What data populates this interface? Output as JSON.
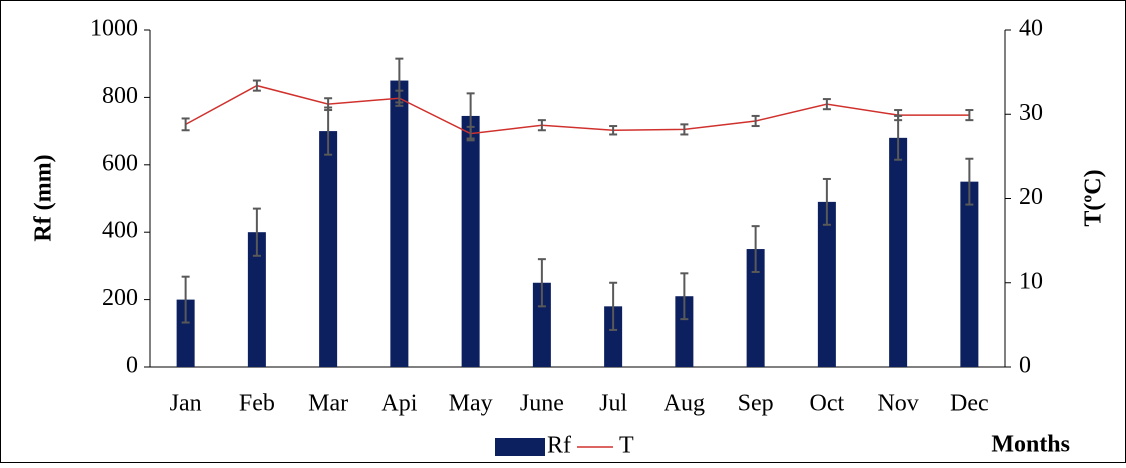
{
  "chart_data": {
    "type": "bar-line",
    "categories": [
      "Jan",
      "Feb",
      "Mar",
      "Api",
      "May",
      "June",
      "Jul",
      "Aug",
      "Sep",
      "Oct",
      "Nov",
      "Dec"
    ],
    "series": [
      {
        "name": "Rf",
        "type": "bar",
        "color": "#0c1f5e",
        "values": [
          200,
          400,
          700,
          850,
          745,
          250,
          180,
          210,
          350,
          490,
          680,
          550
        ],
        "errors": [
          68,
          70,
          70,
          65,
          67,
          70,
          70,
          68,
          68,
          68,
          65,
          68
        ]
      },
      {
        "name": "T",
        "type": "line",
        "axis": "y2",
        "color": "#d0312d",
        "values": [
          28.8,
          33.4,
          31.2,
          31.9,
          27.7,
          28.7,
          28.1,
          28.2,
          29.2,
          31.2,
          29.9,
          29.9
        ],
        "errors": [
          0.7,
          0.6,
          0.7,
          0.9,
          0.8,
          0.6,
          0.5,
          0.6,
          0.6,
          0.6,
          0.6,
          0.6
        ]
      }
    ],
    "ylabel": "Rf (mm)",
    "y2label": "T(ºC)",
    "xlabel": "Months",
    "ylim": [
      0,
      1000
    ],
    "yticks": [
      0,
      200,
      400,
      600,
      800,
      1000
    ],
    "y2lim": [
      0,
      40
    ],
    "y2ticks": [
      0,
      10,
      20,
      30,
      40
    ],
    "error_color": "#595959",
    "legend": "bottom"
  }
}
